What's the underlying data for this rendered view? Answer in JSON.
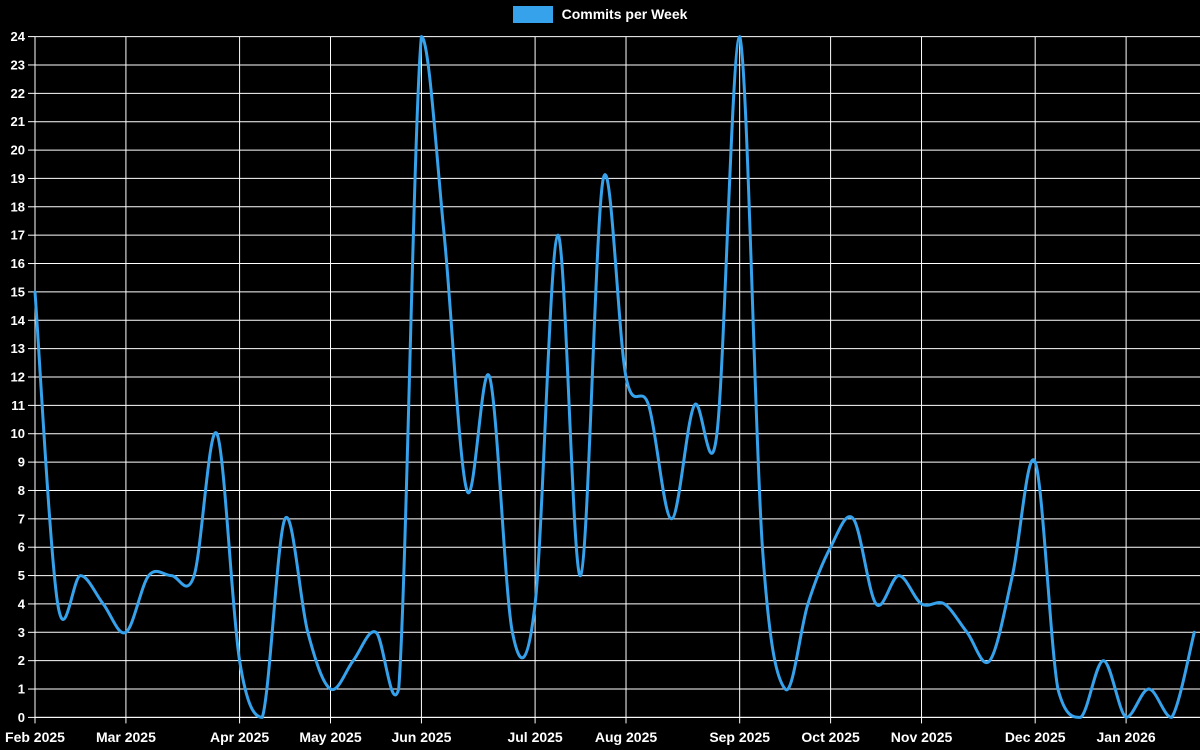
{
  "legend": {
    "label": "Commits per Week"
  },
  "chart_data": {
    "type": "line",
    "title": "Commits per Week",
    "legend_position": "top-center",
    "grid": true,
    "x_unit": "week",
    "n_points": 52,
    "x_range_labels": [
      "Feb 2025",
      "Jan 2026"
    ],
    "x_tick_labels": [
      "Feb 2025",
      "Mar 2025",
      "Apr 2025",
      "May 2025",
      "Jun 2025",
      "Jul 2025",
      "Aug 2025",
      "Sep 2025",
      "Oct 2025",
      "Nov 2025",
      "Dec 2025",
      "Jan 2026"
    ],
    "x_tick_week_indices": [
      0,
      4,
      9,
      13,
      17,
      22,
      26,
      31,
      35,
      39,
      44,
      48
    ],
    "ylim": [
      0,
      24
    ],
    "y_tick_step": 1,
    "series": [
      {
        "name": "Commits per Week",
        "color": "#36A2EB",
        "values": [
          15,
          4,
          5,
          4,
          3,
          5,
          5,
          5,
          10,
          2,
          0,
          7,
          3,
          1,
          2,
          3,
          1,
          24,
          17,
          8,
          12,
          3,
          4,
          17,
          5,
          19,
          12,
          11,
          7,
          11,
          10,
          24,
          6,
          1,
          4,
          6,
          7,
          4,
          5,
          4,
          4,
          3,
          2,
          5,
          9,
          1,
          0,
          2,
          0,
          1,
          0,
          3
        ]
      }
    ],
    "colors": {
      "background": "#000000",
      "grid": "#ffffff",
      "axis": "#ffffff",
      "text": "#ffffff",
      "line": "#36A2EB"
    }
  }
}
